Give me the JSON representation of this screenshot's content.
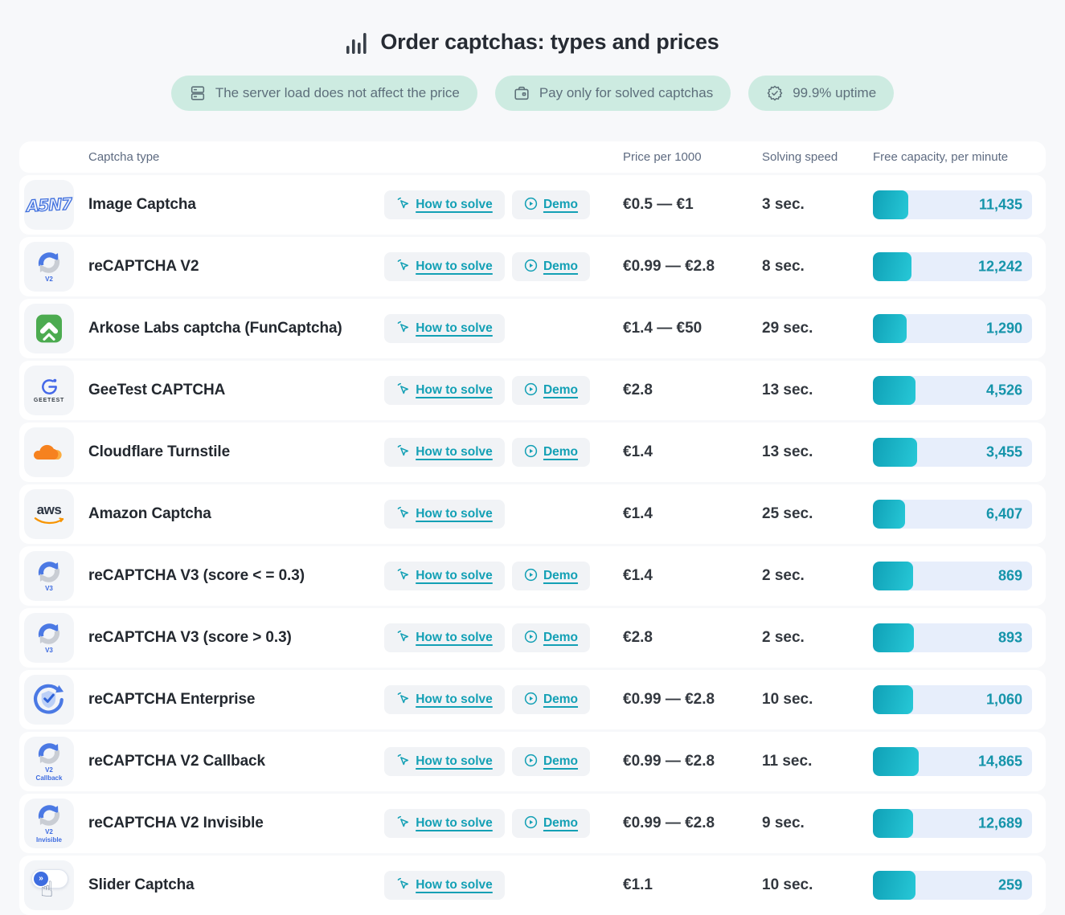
{
  "header": {
    "title": "Order captchas: types and prices",
    "badges": [
      {
        "icon": "server-icon",
        "label": "The server load does not affect the price"
      },
      {
        "icon": "wallet-icon",
        "label": "Pay only for solved captchas"
      },
      {
        "icon": "badge-check-icon",
        "label": "99.9% uptime"
      }
    ]
  },
  "table": {
    "columns": {
      "type": "Captcha type",
      "price": "Price per 1000",
      "speed": "Solving speed",
      "capacity": "Free capacity, per minute"
    },
    "buttons": {
      "how_to_solve": "How to solve",
      "demo": "Demo"
    },
    "rows": [
      {
        "name": "Image Captcha",
        "icon": "image-captcha",
        "icon_text": "A5N7",
        "has_demo": true,
        "price": "€0.5 — €1",
        "speed": "3 sec.",
        "capacity": "11,435",
        "bar_pct": 22
      },
      {
        "name": "reCAPTCHA V2",
        "icon": "recaptcha",
        "sublabel": "V2",
        "has_demo": true,
        "price": "€0.99 — €2.8",
        "speed": "8 sec.",
        "capacity": "12,242",
        "bar_pct": 24
      },
      {
        "name": "Arkose Labs captcha (FunCaptcha)",
        "icon": "arkose",
        "has_demo": false,
        "price": "€1.4 — €50",
        "speed": "29 sec.",
        "capacity": "1,290",
        "bar_pct": 21
      },
      {
        "name": "GeeTest CAPTCHA",
        "icon": "geetest",
        "sublabel": "GEETEST",
        "has_demo": true,
        "price": "€2.8",
        "speed": "13 sec.",
        "capacity": "4,526",
        "bar_pct": 27
      },
      {
        "name": "Cloudflare Turnstile",
        "icon": "cloudflare",
        "has_demo": true,
        "price": "€1.4",
        "speed": "13 sec.",
        "capacity": "3,455",
        "bar_pct": 28
      },
      {
        "name": "Amazon Captcha",
        "icon": "aws",
        "icon_text": "aws",
        "has_demo": false,
        "price": "€1.4",
        "speed": "25 sec.",
        "capacity": "6,407",
        "bar_pct": 20
      },
      {
        "name": "reCAPTCHA V3  (score < = 0.3)",
        "icon": "recaptcha",
        "sublabel": "V3",
        "has_demo": true,
        "price": "€1.4",
        "speed": "2 sec.",
        "capacity": "869",
        "bar_pct": 25
      },
      {
        "name": "reCAPTCHA V3  (score > 0.3)",
        "icon": "recaptcha",
        "sublabel": "V3",
        "has_demo": true,
        "price": "€2.8",
        "speed": "2 sec.",
        "capacity": "893",
        "bar_pct": 26
      },
      {
        "name": "reCAPTCHA Enterprise",
        "icon": "recaptcha-enterprise",
        "has_demo": true,
        "price": "€0.99 — €2.8",
        "speed": "10 sec.",
        "capacity": "1,060",
        "bar_pct": 25
      },
      {
        "name": "reCAPTCHA V2 Callback",
        "icon": "recaptcha",
        "sublabel": "V2\nCallback",
        "has_demo": true,
        "price": "€0.99 — €2.8",
        "speed": "11 sec.",
        "capacity": "14,865",
        "bar_pct": 29
      },
      {
        "name": "reCAPTCHA V2 Invisible",
        "icon": "recaptcha",
        "sublabel": "V2\nInvisible",
        "has_demo": true,
        "price": "€0.99 — €2.8",
        "speed": "9 sec.",
        "capacity": "12,689",
        "bar_pct": 25
      },
      {
        "name": "Slider Captcha",
        "icon": "slider",
        "icon_text": "»",
        "has_demo": false,
        "price": "€1.1",
        "speed": "10 sec.",
        "capacity": "259",
        "bar_pct": 27
      }
    ]
  },
  "colors": {
    "accent_teal": "#13a0b5",
    "badge_bg": "#cdebe1",
    "bar_track": "#e7eefb",
    "bar_fill_start": "#0fa0b6",
    "bar_fill_end": "#27c8d7",
    "page_bg": "#f7f8fa"
  }
}
